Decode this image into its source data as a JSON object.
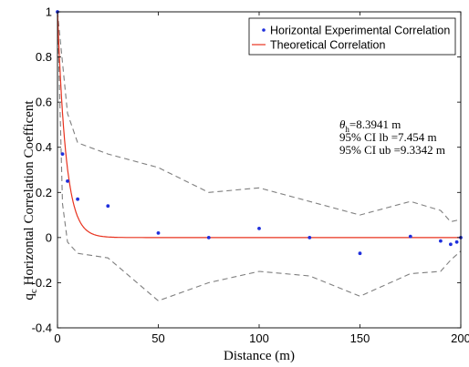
{
  "chart_data": {
    "type": "line",
    "xlabel": "Distance (m)",
    "ylabel": "q",
    "ylabel_sub": "c",
    "ylabel_rest": " Horizontal Correlation Coefficent",
    "xlim": [
      0,
      200
    ],
    "ylim": [
      -0.4,
      1
    ],
    "xticks": [
      0,
      50,
      100,
      150,
      200
    ],
    "yticks": [
      -0.4,
      -0.2,
      0,
      0.2,
      0.4,
      0.6,
      0.8,
      1
    ],
    "xtick_labels": [
      "0",
      "50",
      "100",
      "150",
      "200"
    ],
    "ytick_labels": [
      "-0.4",
      "-0.2",
      "0",
      "0.2",
      "0.4",
      "0.6",
      "0.8",
      "1"
    ],
    "grid": false,
    "legend_position": "top-right",
    "series": [
      {
        "name": "Horizontal Experimental Correlation",
        "style": "markers",
        "color": "#1f2fdc",
        "x": [
          0,
          2.5,
          5,
          10,
          25,
          50,
          75,
          100,
          125,
          150,
          175,
          190,
          195,
          198,
          200
        ],
        "y": [
          1.0,
          0.37,
          0.25,
          0.17,
          0.14,
          0.02,
          0.0,
          0.04,
          0.0,
          -0.07,
          0.005,
          -0.015,
          -0.03,
          -0.02,
          0.0
        ]
      },
      {
        "name": "Theoretical Correlation",
        "style": "line",
        "color": "#e8321e",
        "model": "exp(-2*x/theta)",
        "theta": 8.3941
      },
      {
        "name": "",
        "style": "dashed",
        "color": "#7f7f7f",
        "x": [
          0,
          5,
          10,
          25,
          50,
          75,
          100,
          125,
          150,
          175,
          190,
          195,
          200
        ],
        "y": [
          1.0,
          0.55,
          0.42,
          0.37,
          0.31,
          0.2,
          0.22,
          0.16,
          0.1,
          0.16,
          0.12,
          0.07,
          0.08
        ]
      },
      {
        "name": "",
        "style": "dashed",
        "color": "#7f7f7f",
        "x": [
          0,
          2.5,
          5,
          10,
          25,
          50,
          75,
          100,
          125,
          150,
          175,
          190,
          195,
          200
        ],
        "y": [
          1.0,
          0.15,
          -0.02,
          -0.07,
          -0.09,
          -0.28,
          -0.2,
          -0.15,
          -0.17,
          -0.26,
          -0.16,
          -0.15,
          -0.1,
          -0.06
        ]
      }
    ],
    "annotations": [
      {
        "symbol": "θ",
        "subscript": "h",
        "text": "=8.3941 m"
      },
      {
        "text": "95% CI lb =7.454 m"
      },
      {
        "text": "95% CI ub =9.3342 m"
      }
    ]
  }
}
